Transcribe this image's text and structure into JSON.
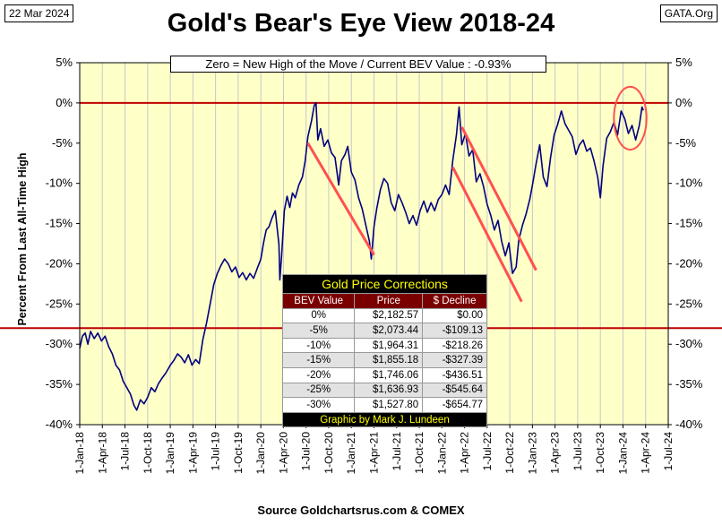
{
  "header": {
    "date": "22 Mar 2024",
    "source_tag": "GATA.Org"
  },
  "chart_data": {
    "type": "line",
    "title": "Gold's Bear's Eye View 2018-24",
    "subtitle": "Zero = New High of the Move / Current  BEV Value : -0.93%",
    "ylabel": "Percent  From  Last  All-Time  High",
    "xlabel": "Source Goldchartsrus.com & COMEX",
    "ylim": [
      -40,
      5
    ],
    "y_ticks": [
      5,
      0,
      -5,
      -10,
      -15,
      -20,
      -25,
      -30,
      -35,
      -40
    ],
    "y_tick_labels": [
      "5%",
      "0%",
      "-5%",
      "-10%",
      "-15%",
      "-20%",
      "-25%",
      "-30%",
      "-35%",
      "-40%"
    ],
    "x_range": [
      2018.0,
      2024.5
    ],
    "x_ticks": [
      2018.0,
      2018.25,
      2018.5,
      2018.75,
      2019.0,
      2019.25,
      2019.5,
      2019.75,
      2020.0,
      2020.25,
      2020.5,
      2020.75,
      2021.0,
      2021.25,
      2021.5,
      2021.75,
      2022.0,
      2022.25,
      2022.5,
      2022.75,
      2023.0,
      2023.25,
      2023.5,
      2023.75,
      2024.0,
      2024.25,
      2024.5
    ],
    "x_tick_labels": [
      "1-Jan-18",
      "1-Apr-18",
      "1-Jul-18",
      "1-Oct-18",
      "1-Jan-19",
      "1-Apr-19",
      "1-Jul-19",
      "1-Oct-19",
      "1-Jan-20",
      "1-Apr-20",
      "1-Jul-20",
      "1-Oct-20",
      "1-Jan-21",
      "1-Apr-21",
      "1-Jul-21",
      "1-Oct-21",
      "1-Jan-22",
      "1-Apr-22",
      "1-Jul-22",
      "1-Oct-22",
      "1-Jan-23",
      "1-Apr-23",
      "1-Jul-23",
      "1-Oct-23",
      "1-Jan-24",
      "1-Apr-24",
      "1-Jul-24"
    ],
    "series": [
      {
        "name": "Gold BEV",
        "color": "#000080",
        "points": [
          [
            2018.0,
            -30.5
          ],
          [
            2018.03,
            -29.0
          ],
          [
            2018.06,
            -28.6
          ],
          [
            2018.09,
            -30.0
          ],
          [
            2018.12,
            -28.4
          ],
          [
            2018.16,
            -29.3
          ],
          [
            2018.2,
            -28.6
          ],
          [
            2018.24,
            -29.6
          ],
          [
            2018.28,
            -29.0
          ],
          [
            2018.32,
            -30.3
          ],
          [
            2018.36,
            -31.2
          ],
          [
            2018.4,
            -32.6
          ],
          [
            2018.44,
            -33.2
          ],
          [
            2018.48,
            -34.6
          ],
          [
            2018.52,
            -35.4
          ],
          [
            2018.56,
            -36.2
          ],
          [
            2018.6,
            -37.6
          ],
          [
            2018.63,
            -38.2
          ],
          [
            2018.67,
            -36.9
          ],
          [
            2018.71,
            -37.4
          ],
          [
            2018.75,
            -36.6
          ],
          [
            2018.79,
            -35.4
          ],
          [
            2018.83,
            -35.9
          ],
          [
            2018.87,
            -34.9
          ],
          [
            2018.91,
            -34.2
          ],
          [
            2018.95,
            -33.6
          ],
          [
            2019.0,
            -32.6
          ],
          [
            2019.04,
            -32.0
          ],
          [
            2019.08,
            -31.2
          ],
          [
            2019.12,
            -31.6
          ],
          [
            2019.16,
            -32.3
          ],
          [
            2019.2,
            -31.3
          ],
          [
            2019.24,
            -32.6
          ],
          [
            2019.28,
            -31.9
          ],
          [
            2019.32,
            -32.4
          ],
          [
            2019.36,
            -29.4
          ],
          [
            2019.4,
            -27.4
          ],
          [
            2019.44,
            -25.0
          ],
          [
            2019.48,
            -22.6
          ],
          [
            2019.52,
            -21.2
          ],
          [
            2019.56,
            -20.2
          ],
          [
            2019.6,
            -19.4
          ],
          [
            2019.64,
            -20.0
          ],
          [
            2019.68,
            -21.0
          ],
          [
            2019.72,
            -20.4
          ],
          [
            2019.76,
            -21.7
          ],
          [
            2019.8,
            -21.1
          ],
          [
            2019.84,
            -22.0
          ],
          [
            2019.88,
            -21.2
          ],
          [
            2019.92,
            -21.8
          ],
          [
            2019.96,
            -20.6
          ],
          [
            2020.0,
            -19.4
          ],
          [
            2020.03,
            -17.4
          ],
          [
            2020.06,
            -15.8
          ],
          [
            2020.09,
            -15.4
          ],
          [
            2020.12,
            -14.4
          ],
          [
            2020.16,
            -13.4
          ],
          [
            2020.2,
            -17.6
          ],
          [
            2020.21,
            -22.0
          ],
          [
            2020.23,
            -19.0
          ],
          [
            2020.26,
            -13.4
          ],
          [
            2020.29,
            -11.6
          ],
          [
            2020.32,
            -13.0
          ],
          [
            2020.35,
            -11.2
          ],
          [
            2020.38,
            -11.8
          ],
          [
            2020.42,
            -10.2
          ],
          [
            2020.46,
            -9.2
          ],
          [
            2020.49,
            -7.2
          ],
          [
            2020.52,
            -4.2
          ],
          [
            2020.56,
            -2.2
          ],
          [
            2020.59,
            -0.3
          ],
          [
            2020.61,
            0.0
          ],
          [
            2020.63,
            -4.6
          ],
          [
            2020.66,
            -3.2
          ],
          [
            2020.7,
            -5.4
          ],
          [
            2020.74,
            -4.6
          ],
          [
            2020.78,
            -6.2
          ],
          [
            2020.82,
            -6.8
          ],
          [
            2020.86,
            -10.2
          ],
          [
            2020.89,
            -7.2
          ],
          [
            2020.93,
            -6.4
          ],
          [
            2020.96,
            -5.4
          ],
          [
            2021.0,
            -8.6
          ],
          [
            2021.04,
            -9.6
          ],
          [
            2021.08,
            -11.8
          ],
          [
            2021.12,
            -13.2
          ],
          [
            2021.16,
            -15.2
          ],
          [
            2021.2,
            -17.2
          ],
          [
            2021.22,
            -19.4
          ],
          [
            2021.25,
            -15.4
          ],
          [
            2021.28,
            -13.2
          ],
          [
            2021.32,
            -10.8
          ],
          [
            2021.36,
            -9.4
          ],
          [
            2021.4,
            -10.0
          ],
          [
            2021.44,
            -12.4
          ],
          [
            2021.48,
            -13.4
          ],
          [
            2021.52,
            -11.4
          ],
          [
            2021.56,
            -12.4
          ],
          [
            2021.6,
            -13.6
          ],
          [
            2021.64,
            -15.0
          ],
          [
            2021.68,
            -14.0
          ],
          [
            2021.72,
            -15.2
          ],
          [
            2021.76,
            -13.4
          ],
          [
            2021.8,
            -12.2
          ],
          [
            2021.84,
            -13.6
          ],
          [
            2021.88,
            -12.4
          ],
          [
            2021.92,
            -13.4
          ],
          [
            2021.96,
            -12.0
          ],
          [
            2022.0,
            -11.4
          ],
          [
            2022.04,
            -10.2
          ],
          [
            2022.08,
            -11.4
          ],
          [
            2022.12,
            -7.2
          ],
          [
            2022.16,
            -4.0
          ],
          [
            2022.19,
            -0.5
          ],
          [
            2022.22,
            -5.2
          ],
          [
            2022.26,
            -3.8
          ],
          [
            2022.3,
            -6.6
          ],
          [
            2022.34,
            -5.8
          ],
          [
            2022.38,
            -9.8
          ],
          [
            2022.42,
            -8.8
          ],
          [
            2022.46,
            -10.4
          ],
          [
            2022.5,
            -12.6
          ],
          [
            2022.54,
            -14.0
          ],
          [
            2022.58,
            -15.8
          ],
          [
            2022.62,
            -14.6
          ],
          [
            2022.66,
            -17.2
          ],
          [
            2022.7,
            -19.0
          ],
          [
            2022.74,
            -17.4
          ],
          [
            2022.78,
            -21.2
          ],
          [
            2022.82,
            -20.4
          ],
          [
            2022.85,
            -17.0
          ],
          [
            2022.89,
            -15.2
          ],
          [
            2022.93,
            -13.8
          ],
          [
            2022.97,
            -12.0
          ],
          [
            2023.0,
            -10.2
          ],
          [
            2023.04,
            -7.6
          ],
          [
            2023.08,
            -5.2
          ],
          [
            2023.12,
            -9.2
          ],
          [
            2023.16,
            -10.4
          ],
          [
            2023.2,
            -6.8
          ],
          [
            2023.24,
            -4.0
          ],
          [
            2023.28,
            -2.6
          ],
          [
            2023.32,
            -1.0
          ],
          [
            2023.36,
            -2.6
          ],
          [
            2023.4,
            -3.4
          ],
          [
            2023.44,
            -4.2
          ],
          [
            2023.48,
            -6.4
          ],
          [
            2023.52,
            -5.2
          ],
          [
            2023.56,
            -4.6
          ],
          [
            2023.6,
            -6.0
          ],
          [
            2023.64,
            -5.6
          ],
          [
            2023.68,
            -7.2
          ],
          [
            2023.72,
            -9.2
          ],
          [
            2023.75,
            -11.8
          ],
          [
            2023.78,
            -7.8
          ],
          [
            2023.82,
            -4.4
          ],
          [
            2023.86,
            -3.6
          ],
          [
            2023.9,
            -2.4
          ],
          [
            2023.94,
            -4.0
          ],
          [
            2023.98,
            -1.0
          ],
          [
            2024.02,
            -2.0
          ],
          [
            2024.06,
            -3.8
          ],
          [
            2024.1,
            -2.8
          ],
          [
            2024.14,
            -4.6
          ],
          [
            2024.18,
            -2.8
          ],
          [
            2024.21,
            -0.5
          ],
          [
            2024.225,
            -0.93
          ]
        ]
      }
    ],
    "reference_lines": [
      {
        "name": "zero-line",
        "y": 0,
        "color": "#c00000"
      },
      {
        "name": "support-line",
        "y": -28,
        "color": "#c00000"
      }
    ],
    "trend_lines": [
      {
        "name": "trend-2020",
        "x": [
          2020.52,
          2021.25
        ],
        "y": [
          -5.0,
          -18.9
        ],
        "color": "#ff5050"
      },
      {
        "name": "trend-2022-lower",
        "x": [
          2022.12,
          2022.88
        ],
        "y": [
          -8.0,
          -24.7
        ],
        "color": "#ff5050"
      },
      {
        "name": "trend-2022-upper",
        "x": [
          2022.22,
          2023.04
        ],
        "y": [
          -3.0,
          -20.8
        ],
        "color": "#ff5050"
      }
    ],
    "annotation_circle": {
      "cx": 2024.08,
      "cy": -1.9,
      "rx": 0.18,
      "ry": 3.9,
      "color": "#ff5050"
    },
    "table": {
      "title": "Gold Price Corrections",
      "columns": [
        "BEV Value",
        "Price",
        "$ Decline"
      ],
      "rows": [
        [
          "0%",
          "$2,182.57",
          "$0.00"
        ],
        [
          "-5%",
          "$2,073.44",
          "-$109.13"
        ],
        [
          "-10%",
          "$1,964.31",
          "-$218.26"
        ],
        [
          "-15%",
          "$1,855.18",
          "-$327.39"
        ],
        [
          "-20%",
          "$1,746.06",
          "-$436.51"
        ],
        [
          "-25%",
          "$1,636.93",
          "-$545.64"
        ],
        [
          "-30%",
          "$1,527.80",
          "-$654.77"
        ]
      ],
      "credit": "Graphic by Mark J. Lundeen"
    },
    "colors": {
      "plot_background": "#ffffc8",
      "grid": "#c8c8c8"
    }
  }
}
